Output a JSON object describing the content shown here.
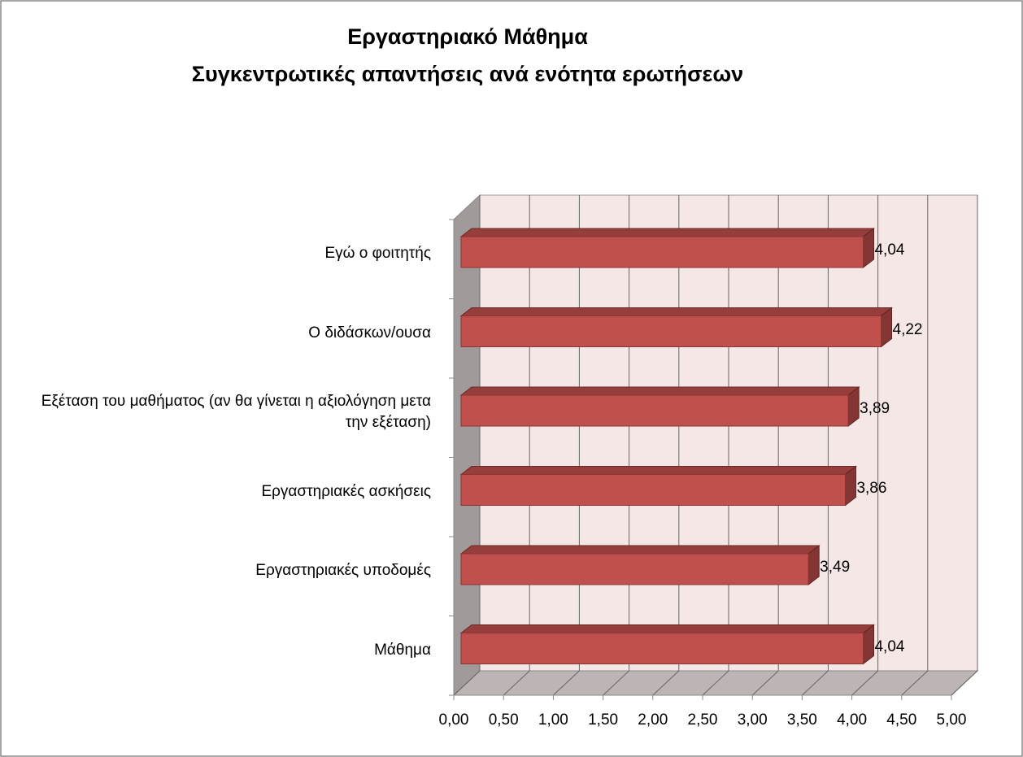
{
  "chart_data": {
    "type": "bar3d_horizontal",
    "title": [
      "Εργαστηριακό Μάθημα",
      "Συγκεντρωτικές απαντήσεις ανά ενότητα ερωτήσεων"
    ],
    "categories": [
      "Εγώ ο φοιτητής",
      "Ο διδάσκων/ουσα",
      "Εξέταση του μαθήματος (αν θα γίνεται η αξιολόγηση μετα την εξέταση)",
      "Εργαστηριακές ασκήσεις",
      "Εργαστηριακές υποδομές",
      "Μάθημα"
    ],
    "values": [
      4.04,
      4.22,
      3.89,
      3.86,
      3.49,
      4.04
    ],
    "value_labels": [
      "4,04",
      "4,22",
      "3,89",
      "3,86",
      "3,49",
      "4,04"
    ],
    "color": "#c0504d",
    "xlim": [
      0,
      5
    ],
    "xticks": [
      {
        "value": 0,
        "label": "0,00"
      },
      {
        "value": 0.5,
        "label": "0,50"
      },
      {
        "value": 1,
        "label": "1,00"
      },
      {
        "value": 1.5,
        "label": "1,50"
      },
      {
        "value": 2,
        "label": "2,00"
      },
      {
        "value": 2.5,
        "label": "2,50"
      },
      {
        "value": 3,
        "label": "3,00"
      },
      {
        "value": 3.5,
        "label": "3,50"
      },
      {
        "value": 4,
        "label": "4,00"
      },
      {
        "value": 4.5,
        "label": "4,50"
      },
      {
        "value": 5,
        "label": "5,00"
      }
    ],
    "grid": true
  }
}
